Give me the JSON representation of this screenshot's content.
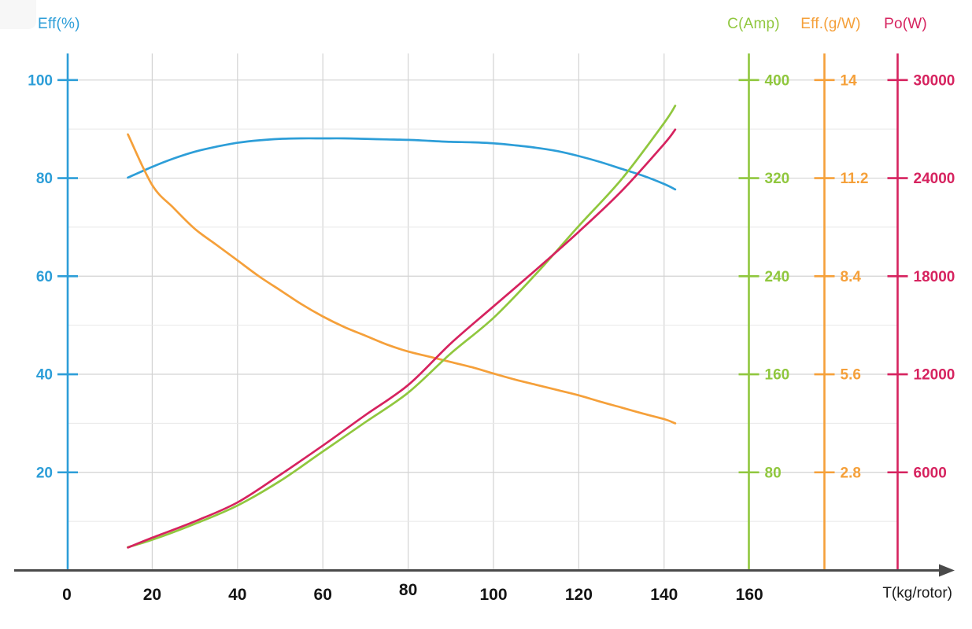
{
  "chart_data": {
    "type": "line",
    "title": "",
    "grid": {
      "visible": true,
      "major_color": "#d3d3d3",
      "minor_color": "#e8e8e8",
      "h_minor_step_pct": 10,
      "v_step": 20
    },
    "x_axis": {
      "label": "T(kg/rotor)",
      "ticks": [
        0,
        20,
        40,
        60,
        80,
        100,
        120,
        140,
        160
      ],
      "color": "#4a4a4a",
      "tick_label_color": "#141414"
    },
    "y_axes": [
      {
        "id": "eff",
        "label": "Eff(%)",
        "color": "#2d9ed8",
        "max": 100,
        "ticks": [
          20,
          40,
          60,
          80,
          100
        ],
        "side": "left"
      },
      {
        "id": "c",
        "label": "C(Amp)",
        "color": "#90c73e",
        "max": 400,
        "ticks": [
          80,
          160,
          240,
          320,
          400
        ],
        "side": "right"
      },
      {
        "id": "effgw",
        "label": "Eff.(g/W)",
        "color": "#f5a03a",
        "max": 14,
        "ticks": [
          2.8,
          5.6,
          8.4,
          11.2,
          14
        ],
        "side": "right"
      },
      {
        "id": "po",
        "label": "Po(W)",
        "color": "#d6235f",
        "max": 30000,
        "ticks": [
          6000,
          12000,
          18000,
          24000,
          30000
        ],
        "side": "right"
      }
    ],
    "series": [
      {
        "name": "Eff(%)",
        "axis": "eff",
        "color": "#2d9ed8",
        "points": [
          [
            14.3,
            80.1
          ],
          [
            20,
            82.3
          ],
          [
            25,
            84.0
          ],
          [
            30,
            85.4
          ],
          [
            35,
            86.4
          ],
          [
            40,
            87.2
          ],
          [
            45,
            87.7
          ],
          [
            50,
            88.0
          ],
          [
            55,
            88.1
          ],
          [
            60,
            88.1
          ],
          [
            65,
            88.1
          ],
          [
            70,
            88.0
          ],
          [
            75,
            87.9
          ],
          [
            80,
            87.8
          ],
          [
            85,
            87.6
          ],
          [
            90,
            87.4
          ],
          [
            95,
            87.3
          ],
          [
            100,
            87.1
          ],
          [
            105,
            86.7
          ],
          [
            110,
            86.2
          ],
          [
            115,
            85.5
          ],
          [
            120,
            84.5
          ],
          [
            125,
            83.3
          ],
          [
            130,
            81.9
          ],
          [
            135,
            80.5
          ],
          [
            140,
            78.8
          ],
          [
            142.6,
            77.7
          ]
        ]
      },
      {
        "name": "Eff.(g/W)",
        "axis": "effgw",
        "color": "#f5a03a",
        "points": [
          [
            14.3,
            12.45
          ],
          [
            20,
            11.0
          ],
          [
            25,
            10.35
          ],
          [
            30,
            9.75
          ],
          [
            35,
            9.3
          ],
          [
            40,
            8.85
          ],
          [
            45,
            8.4
          ],
          [
            50,
            8.0
          ],
          [
            55,
            7.6
          ],
          [
            60,
            7.25
          ],
          [
            65,
            6.95
          ],
          [
            70,
            6.7
          ],
          [
            75,
            6.45
          ],
          [
            80,
            6.25
          ],
          [
            85,
            6.1
          ],
          [
            90,
            5.95
          ],
          [
            95,
            5.8
          ],
          [
            100,
            5.62
          ],
          [
            105,
            5.45
          ],
          [
            110,
            5.3
          ],
          [
            115,
            5.15
          ],
          [
            120,
            5.0
          ],
          [
            125,
            4.82
          ],
          [
            130,
            4.65
          ],
          [
            135,
            4.48
          ],
          [
            140,
            4.32
          ],
          [
            142.6,
            4.2
          ]
        ]
      },
      {
        "name": "C(Amp)",
        "axis": "c",
        "color": "#90c73e",
        "points": [
          [
            14.3,
            19
          ],
          [
            20,
            25
          ],
          [
            30,
            38
          ],
          [
            40,
            53
          ],
          [
            50,
            73
          ],
          [
            60,
            97
          ],
          [
            70,
            121
          ],
          [
            80,
            145
          ],
          [
            90,
            177
          ],
          [
            100,
            206
          ],
          [
            110,
            242
          ],
          [
            120,
            281
          ],
          [
            130,
            319
          ],
          [
            140,
            365
          ],
          [
            142.6,
            379
          ]
        ]
      },
      {
        "name": "Po(W)",
        "axis": "po",
        "color": "#d6235f",
        "points": [
          [
            14.3,
            1400
          ],
          [
            20,
            2000
          ],
          [
            30,
            3000
          ],
          [
            40,
            4160
          ],
          [
            50,
            5850
          ],
          [
            60,
            7640
          ],
          [
            70,
            9510
          ],
          [
            80,
            11340
          ],
          [
            90,
            13890
          ],
          [
            100,
            16150
          ],
          [
            110,
            18400
          ],
          [
            120,
            20720
          ],
          [
            130,
            23200
          ],
          [
            140,
            26090
          ],
          [
            142.6,
            26970
          ]
        ]
      }
    ]
  }
}
